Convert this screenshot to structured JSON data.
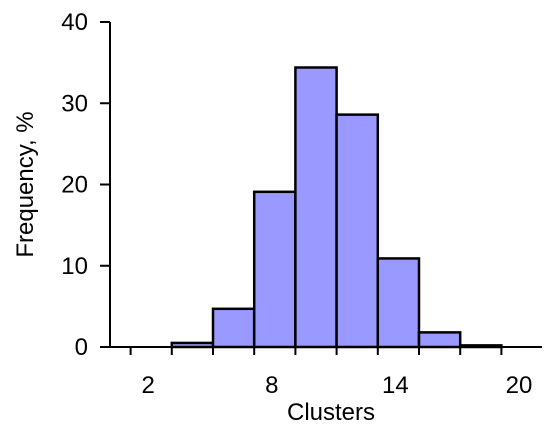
{
  "chart_data": {
    "type": "bar",
    "xlabel": "Clusters",
    "ylabel": "Frequency, %",
    "xlim": [
      0,
      20
    ],
    "ylim": [
      0,
      40
    ],
    "x_ticks": [
      2,
      8,
      14,
      20
    ],
    "y_ticks": [
      0,
      10,
      20,
      30,
      40
    ],
    "bin_width": 2,
    "bins": [
      {
        "x0": 3,
        "x1": 5,
        "value": 0.5
      },
      {
        "x0": 5,
        "x1": 7,
        "value": 4.7
      },
      {
        "x0": 7,
        "x1": 9,
        "value": 19.1
      },
      {
        "x0": 9,
        "x1": 11,
        "value": 34.4
      },
      {
        "x0": 11,
        "x1": 13,
        "value": 28.6
      },
      {
        "x0": 13,
        "x1": 15,
        "value": 10.9
      },
      {
        "x0": 15,
        "x1": 17,
        "value": 1.8
      },
      {
        "x0": 17,
        "x1": 19,
        "value": 0.2
      }
    ],
    "grid": false,
    "legend": "none",
    "colors": {
      "bar_fill": "#9999ff",
      "bar_stroke": "#000000",
      "axis": "#000000"
    }
  }
}
